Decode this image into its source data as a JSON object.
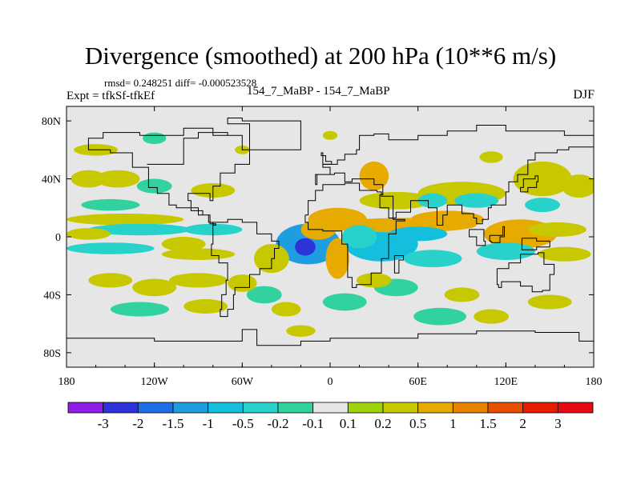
{
  "chart_data": {
    "type": "heatmap",
    "title": "Divergence (smoothed) at 200 hPa (10**6 m/s)",
    "stats": "rmsd= 0.248251 diff= -0.000523528",
    "experiment": "Expt = tfkSf-tfkEf",
    "subtitle": "154_7_MaBP - 154_7_MaBP",
    "season": "DJF",
    "xlim": [
      -180,
      180
    ],
    "ylim": [
      -90,
      90
    ],
    "x_ticks": [
      {
        "value": -180,
        "label": "180"
      },
      {
        "value": -120,
        "label": "120W"
      },
      {
        "value": -60,
        "label": "60W"
      },
      {
        "value": 0,
        "label": "0"
      },
      {
        "value": 60,
        "label": "60E"
      },
      {
        "value": 120,
        "label": "120E"
      },
      {
        "value": 180,
        "label": "180"
      }
    ],
    "y_ticks": [
      {
        "value": 80,
        "label": "80N"
      },
      {
        "value": 40,
        "label": "40N"
      },
      {
        "value": 0,
        "label": "0"
      },
      {
        "value": -40,
        "label": "40S"
      },
      {
        "value": -80,
        "label": "80S"
      }
    ],
    "background_color": "#e6e6e6",
    "colorbar": {
      "labels": [
        "-3",
        "-2",
        "-1.5",
        "-1",
        "-0.5",
        "-0.2",
        "-0.1",
        "0.1",
        "0.2",
        "0.5",
        "1",
        "1.5",
        "2",
        "3"
      ],
      "colors": [
        "#8f1ee6",
        "#2d32d9",
        "#1e6ee6",
        "#1e9ee0",
        "#14bedd",
        "#28d2ca",
        "#32d2a0",
        "#e6e6e6",
        "#9ed20a",
        "#c8c800",
        "#e6aa00",
        "#e68200",
        "#e65000",
        "#e61e00",
        "#e60a14"
      ]
    },
    "features": [
      {
        "lon": -15,
        "lat": -5,
        "rx": 22,
        "ry": 14,
        "value": -1.2
      },
      {
        "lon": -17,
        "lat": -7,
        "rx": 7,
        "ry": 6,
        "value": -2.2
      },
      {
        "lon": 35,
        "lat": -5,
        "rx": 25,
        "ry": 12,
        "value": -0.7
      },
      {
        "lon": 20,
        "lat": 0,
        "rx": 12,
        "ry": 8,
        "value": -0.4
      },
      {
        "lon": 60,
        "lat": 2,
        "rx": 20,
        "ry": 5,
        "value": -0.6
      },
      {
        "lon": 5,
        "lat": 12,
        "rx": 20,
        "ry": 8,
        "value": 0.7
      },
      {
        "lon": -8,
        "lat": 5,
        "rx": 12,
        "ry": 7,
        "value": 0.6
      },
      {
        "lon": 50,
        "lat": 8,
        "rx": 50,
        "ry": 5,
        "value": 0.55
      },
      {
        "lon": 80,
        "lat": 12,
        "rx": 25,
        "ry": 6,
        "value": 0.8
      },
      {
        "lon": 5,
        "lat": -15,
        "rx": 8,
        "ry": 14,
        "value": 0.6
      },
      {
        "lon": -40,
        "lat": -15,
        "rx": 12,
        "ry": 10,
        "value": 0.4
      },
      {
        "lon": -130,
        "lat": 5,
        "rx": 35,
        "ry": 4,
        "value": -0.3
      },
      {
        "lon": -80,
        "lat": 5,
        "rx": 20,
        "ry": 4,
        "value": -0.3
      },
      {
        "lon": -150,
        "lat": -8,
        "rx": 30,
        "ry": 4,
        "value": -0.3
      },
      {
        "lon": -100,
        "lat": -5,
        "rx": 15,
        "ry": 5,
        "value": 0.3
      },
      {
        "lon": -165,
        "lat": 2,
        "rx": 15,
        "ry": 4,
        "value": 0.3
      },
      {
        "lon": -90,
        "lat": -12,
        "rx": 25,
        "ry": 4,
        "value": 0.3
      },
      {
        "lon": -140,
        "lat": 12,
        "rx": 40,
        "ry": 4,
        "value": 0.3
      },
      {
        "lon": 130,
        "lat": 2,
        "rx": 25,
        "ry": 10,
        "value": 0.55
      },
      {
        "lon": 155,
        "lat": 5,
        "rx": 20,
        "ry": 5,
        "value": 0.4
      },
      {
        "lon": 160,
        "lat": -12,
        "rx": 18,
        "ry": 5,
        "value": 0.3
      },
      {
        "lon": 120,
        "lat": -10,
        "rx": 20,
        "ry": 6,
        "value": -0.3
      },
      {
        "lon": 70,
        "lat": -15,
        "rx": 20,
        "ry": 6,
        "value": -0.3
      },
      {
        "lon": 30,
        "lat": 42,
        "rx": 10,
        "ry": 10,
        "value": 0.5
      },
      {
        "lon": 45,
        "lat": 25,
        "rx": 25,
        "ry": 6,
        "value": 0.3
      },
      {
        "lon": 90,
        "lat": 30,
        "rx": 30,
        "ry": 8,
        "value": 0.3
      },
      {
        "lon": 100,
        "lat": 25,
        "rx": 15,
        "ry": 5,
        "value": -0.3
      },
      {
        "lon": 70,
        "lat": 25,
        "rx": 10,
        "ry": 5,
        "value": -0.3
      },
      {
        "lon": 145,
        "lat": 40,
        "rx": 20,
        "ry": 12,
        "value": 0.4
      },
      {
        "lon": 170,
        "lat": 35,
        "rx": 12,
        "ry": 8,
        "value": 0.4
      },
      {
        "lon": 145,
        "lat": 22,
        "rx": 12,
        "ry": 5,
        "value": -0.3
      },
      {
        "lon": -145,
        "lat": 40,
        "rx": 15,
        "ry": 6,
        "value": 0.4
      },
      {
        "lon": -165,
        "lat": 40,
        "rx": 12,
        "ry": 6,
        "value": 0.4
      },
      {
        "lon": -120,
        "lat": 35,
        "rx": 12,
        "ry": 5,
        "value": -0.2
      },
      {
        "lon": -80,
        "lat": 32,
        "rx": 15,
        "ry": 5,
        "value": 0.3
      },
      {
        "lon": -150,
        "lat": 22,
        "rx": 20,
        "ry": 4,
        "value": -0.2
      },
      {
        "lon": -160,
        "lat": 60,
        "rx": 15,
        "ry": 4,
        "value": 0.3
      },
      {
        "lon": -120,
        "lat": 68,
        "rx": 8,
        "ry": 4,
        "value": -0.2
      },
      {
        "lon": -60,
        "lat": 60,
        "rx": 5,
        "ry": 3,
        "value": 0.3
      },
      {
        "lon": 0,
        "lat": 70,
        "rx": 5,
        "ry": 3,
        "value": 0.3
      },
      {
        "lon": 110,
        "lat": 55,
        "rx": 8,
        "ry": 4,
        "value": 0.3
      },
      {
        "lon": -150,
        "lat": -30,
        "rx": 15,
        "ry": 5,
        "value": 0.3
      },
      {
        "lon": -120,
        "lat": -35,
        "rx": 15,
        "ry": 6,
        "value": 0.3
      },
      {
        "lon": -90,
        "lat": -30,
        "rx": 20,
        "ry": 5,
        "value": 0.3
      },
      {
        "lon": -60,
        "lat": -32,
        "rx": 10,
        "ry": 6,
        "value": 0.3
      },
      {
        "lon": -45,
        "lat": -40,
        "rx": 12,
        "ry": 6,
        "value": -0.2
      },
      {
        "lon": -130,
        "lat": -50,
        "rx": 20,
        "ry": 5,
        "value": -0.2
      },
      {
        "lon": -85,
        "lat": -48,
        "rx": 15,
        "ry": 5,
        "value": 0.3
      },
      {
        "lon": -30,
        "lat": -50,
        "rx": 10,
        "ry": 5,
        "value": 0.3
      },
      {
        "lon": 10,
        "lat": -45,
        "rx": 15,
        "ry": 6,
        "value": -0.2
      },
      {
        "lon": 45,
        "lat": -35,
        "rx": 15,
        "ry": 6,
        "value": -0.2
      },
      {
        "lon": 30,
        "lat": -30,
        "rx": 12,
        "ry": 5,
        "value": 0.3
      },
      {
        "lon": 90,
        "lat": -40,
        "rx": 12,
        "ry": 5,
        "value": 0.3
      },
      {
        "lon": 75,
        "lat": -55,
        "rx": 18,
        "ry": 6,
        "value": -0.2
      },
      {
        "lon": 110,
        "lat": -55,
        "rx": 12,
        "ry": 5,
        "value": 0.3
      },
      {
        "lon": 150,
        "lat": -45,
        "rx": 15,
        "ry": 5,
        "value": 0.3
      },
      {
        "lon": -20,
        "lat": -65,
        "rx": 10,
        "ry": 4,
        "value": 0.3
      }
    ],
    "coastline": [
      [
        [
          -130,
          70
        ],
        [
          -100,
          75
        ],
        [
          -80,
          70
        ],
        [
          -60,
          60
        ],
        [
          -55,
          50
        ],
        [
          -65,
          44
        ],
        [
          -75,
          35
        ],
        [
          -80,
          25
        ],
        [
          -82,
          30
        ],
        [
          -90,
          30
        ],
        [
          -97,
          25
        ],
        [
          -95,
          18
        ],
        [
          -87,
          15
        ],
        [
          -83,
          10
        ],
        [
          -80,
          8
        ],
        [
          -78,
          9
        ],
        [
          -82,
          15
        ],
        [
          -90,
          20
        ],
        [
          -100,
          20
        ],
        [
          -105,
          22
        ],
        [
          -110,
          30
        ],
        [
          -118,
          34
        ],
        [
          -124,
          40
        ],
        [
          -124,
          48
        ],
        [
          -135,
          58
        ],
        [
          -150,
          60
        ],
        [
          -165,
          60
        ],
        [
          -165,
          68
        ],
        [
          -155,
          72
        ],
        [
          -130,
          70
        ]
      ],
      [
        [
          -80,
          10
        ],
        [
          -70,
          12
        ],
        [
          -60,
          10
        ],
        [
          -50,
          2
        ],
        [
          -40,
          -3
        ],
        [
          -35,
          -8
        ],
        [
          -38,
          -15
        ],
        [
          -40,
          -22
        ],
        [
          -48,
          -26
        ],
        [
          -55,
          -35
        ],
        [
          -65,
          -40
        ],
        [
          -66,
          -50
        ],
        [
          -70,
          -55
        ],
        [
          -75,
          -50
        ],
        [
          -74,
          -40
        ],
        [
          -71,
          -30
        ],
        [
          -70,
          -18
        ],
        [
          -76,
          -13
        ],
        [
          -81,
          -5
        ],
        [
          -80,
          2
        ],
        [
          -80,
          10
        ]
      ],
      [
        [
          -17,
          15
        ],
        [
          -15,
          25
        ],
        [
          -10,
          32
        ],
        [
          -5,
          36
        ],
        [
          10,
          37
        ],
        [
          20,
          32
        ],
        [
          32,
          31
        ],
        [
          35,
          28
        ],
        [
          43,
          12
        ],
        [
          51,
          11
        ],
        [
          45,
          2
        ],
        [
          40,
          -10
        ],
        [
          40,
          -15
        ],
        [
          35,
          -25
        ],
        [
          28,
          -33
        ],
        [
          18,
          -35
        ],
        [
          15,
          -28
        ],
        [
          12,
          -15
        ],
        [
          12,
          -5
        ],
        [
          8,
          4
        ],
        [
          -5,
          5
        ],
        [
          -15,
          10
        ],
        [
          -17,
          15
        ]
      ],
      [
        [
          -10,
          36
        ],
        [
          -9,
          43
        ],
        [
          0,
          48
        ],
        [
          -5,
          50
        ],
        [
          5,
          53
        ],
        [
          10,
          57
        ],
        [
          18,
          60
        ],
        [
          20,
          70
        ],
        [
          30,
          71
        ],
        [
          40,
          67
        ],
        [
          60,
          70
        ],
        [
          80,
          73
        ],
        [
          100,
          77
        ],
        [
          120,
          73
        ],
        [
          140,
          73
        ],
        [
          160,
          70
        ],
        [
          180,
          66
        ],
        [
          180,
          62
        ],
        [
          163,
          60
        ],
        [
          155,
          58
        ],
        [
          140,
          53
        ],
        [
          135,
          43
        ],
        [
          128,
          38
        ],
        [
          122,
          31
        ],
        [
          120,
          22
        ],
        [
          110,
          20
        ],
        [
          108,
          12
        ],
        [
          104,
          9
        ],
        [
          100,
          13
        ],
        [
          98,
          16
        ],
        [
          90,
          22
        ],
        [
          80,
          15
        ],
        [
          77,
          8
        ],
        [
          73,
          20
        ],
        [
          67,
          25
        ],
        [
          58,
          25
        ],
        [
          55,
          17
        ],
        [
          45,
          13
        ],
        [
          40,
          20
        ],
        [
          34,
          29
        ],
        [
          36,
          36
        ],
        [
          30,
          40
        ],
        [
          26,
          40
        ],
        [
          20,
          40
        ],
        [
          15,
          38
        ],
        [
          10,
          44
        ],
        [
          3,
          43
        ],
        [
          -10,
          36
        ]
      ],
      [
        [
          114,
          -22
        ],
        [
          122,
          -18
        ],
        [
          130,
          -12
        ],
        [
          137,
          -12
        ],
        [
          142,
          -11
        ],
        [
          146,
          -19
        ],
        [
          153,
          -26
        ],
        [
          150,
          -37
        ],
        [
          145,
          -38
        ],
        [
          138,
          -34
        ],
        [
          130,
          -31
        ],
        [
          117,
          -35
        ],
        [
          115,
          -33
        ],
        [
          114,
          -22
        ]
      ],
      [
        [
          -55,
          60
        ],
        [
          -45,
          60
        ],
        [
          -20,
          70
        ],
        [
          -20,
          80
        ],
        [
          -60,
          82
        ],
        [
          -70,
          78
        ],
        [
          -55,
          60
        ]
      ],
      [
        [
          -180,
          -70
        ],
        [
          -120,
          -72
        ],
        [
          -60,
          -64
        ],
        [
          -50,
          -75
        ],
        [
          -20,
          -72
        ],
        [
          0,
          -70
        ],
        [
          60,
          -67
        ],
        [
          100,
          -65
        ],
        [
          140,
          -66
        ],
        [
          170,
          -72
        ],
        [
          180,
          -75
        ]
      ],
      [
        [
          95,
          5
        ],
        [
          105,
          -3
        ],
        [
          106,
          -6
        ],
        [
          100,
          0
        ],
        [
          95,
          5
        ]
      ],
      [
        [
          109,
          1
        ],
        [
          118,
          7
        ],
        [
          119,
          0
        ],
        [
          116,
          -4
        ],
        [
          110,
          -3
        ],
        [
          109,
          1
        ]
      ],
      [
        [
          131,
          -1
        ],
        [
          141,
          -3
        ],
        [
          150,
          -7
        ],
        [
          141,
          -9
        ],
        [
          131,
          -1
        ]
      ],
      [
        [
          130,
          31
        ],
        [
          135,
          34
        ],
        [
          141,
          38
        ],
        [
          142,
          42
        ],
        [
          140,
          40
        ],
        [
          132,
          34
        ],
        [
          130,
          31
        ]
      ],
      [
        [
          44,
          -13
        ],
        [
          50,
          -16
        ],
        [
          47,
          -25
        ],
        [
          44,
          -22
        ],
        [
          44,
          -13
        ]
      ],
      [
        [
          -5,
          50
        ],
        [
          1,
          52
        ],
        [
          -3,
          56
        ],
        [
          -6,
          58
        ],
        [
          -5,
          50
        ]
      ],
      [
        [
          -125,
          50
        ],
        [
          -100,
          68
        ],
        [
          -90,
          72
        ],
        [
          -70,
          70
        ]
      ]
    ]
  }
}
